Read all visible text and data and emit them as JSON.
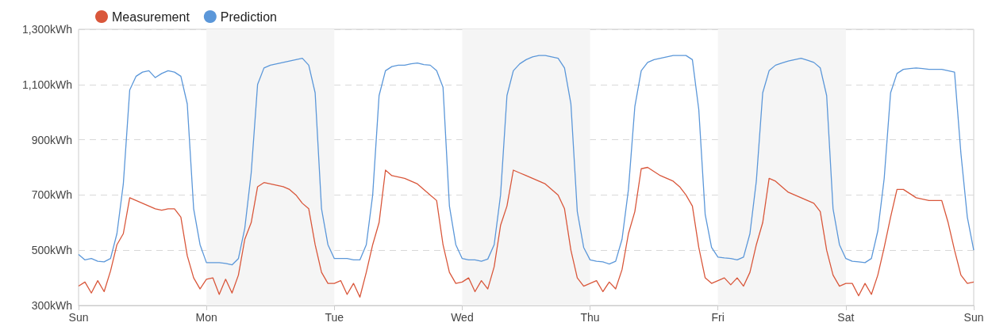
{
  "chart_data": {
    "type": "line",
    "categories": [
      "Sun",
      null,
      null,
      null,
      null,
      null,
      null,
      null,
      null,
      null,
      null,
      null,
      null,
      null,
      null,
      null,
      null,
      null,
      null,
      null,
      "Mon",
      null,
      null,
      null,
      null,
      null,
      null,
      null,
      null,
      null,
      null,
      null,
      null,
      null,
      null,
      null,
      null,
      null,
      null,
      null,
      "Tue",
      null,
      null,
      null,
      null,
      null,
      null,
      null,
      null,
      null,
      null,
      null,
      null,
      null,
      null,
      null,
      null,
      null,
      null,
      null,
      "Wed",
      null,
      null,
      null,
      null,
      null,
      null,
      null,
      null,
      null,
      null,
      null,
      null,
      null,
      null,
      null,
      null,
      null,
      null,
      null,
      "Thu",
      null,
      null,
      null,
      null,
      null,
      null,
      null,
      null,
      null,
      null,
      null,
      null,
      null,
      null,
      null,
      null,
      null,
      null,
      null,
      "Fri",
      null,
      null,
      null,
      null,
      null,
      null,
      null,
      null,
      null,
      null,
      null,
      null,
      null,
      null,
      null,
      null,
      null,
      null,
      null,
      "Sat",
      null,
      null,
      null,
      null,
      null,
      null,
      null,
      null,
      null,
      null,
      null,
      null,
      null,
      null,
      null,
      null,
      null,
      null,
      null,
      "Sun"
    ],
    "series": [
      {
        "name": "Measurement",
        "color": "#d9573b",
        "values": [
          370,
          385,
          345,
          390,
          350,
          425,
          520,
          560,
          690,
          680,
          670,
          660,
          650,
          645,
          650,
          650,
          620,
          480,
          400,
          360,
          395,
          400,
          340,
          395,
          345,
          410,
          540,
          600,
          730,
          745,
          740,
          735,
          730,
          720,
          700,
          670,
          650,
          520,
          420,
          380,
          380,
          390,
          340,
          380,
          330,
          420,
          520,
          600,
          790,
          770,
          765,
          760,
          750,
          740,
          720,
          700,
          680,
          520,
          420,
          380,
          385,
          400,
          350,
          390,
          360,
          440,
          590,
          660,
          790,
          780,
          770,
          760,
          750,
          740,
          720,
          700,
          650,
          500,
          400,
          370,
          380,
          390,
          350,
          385,
          360,
          430,
          560,
          640,
          795,
          800,
          785,
          770,
          760,
          750,
          730,
          700,
          660,
          510,
          400,
          380,
          390,
          400,
          375,
          400,
          370,
          420,
          520,
          600,
          760,
          750,
          730,
          710,
          700,
          690,
          680,
          670,
          640,
          500,
          410,
          370,
          380,
          380,
          335,
          380,
          340,
          410,
          510,
          620,
          720,
          720,
          705,
          690,
          685,
          680,
          680,
          680,
          600,
          500,
          410,
          380,
          385
        ]
      },
      {
        "name": "Prediction",
        "color": "#5b97d9",
        "values": [
          485,
          465,
          470,
          460,
          458,
          470,
          560,
          740,
          1080,
          1130,
          1145,
          1150,
          1125,
          1140,
          1150,
          1145,
          1130,
          1030,
          650,
          520,
          455,
          455,
          455,
          452,
          447,
          470,
          580,
          780,
          1100,
          1160,
          1170,
          1175,
          1180,
          1185,
          1190,
          1195,
          1170,
          1070,
          650,
          520,
          470,
          470,
          470,
          465,
          465,
          520,
          700,
          1060,
          1150,
          1165,
          1170,
          1170,
          1175,
          1178,
          1172,
          1170,
          1150,
          1090,
          660,
          520,
          470,
          465,
          465,
          460,
          468,
          520,
          700,
          1060,
          1150,
          1175,
          1190,
          1200,
          1205,
          1205,
          1200,
          1195,
          1160,
          1030,
          640,
          510,
          465,
          460,
          458,
          450,
          460,
          540,
          720,
          1020,
          1150,
          1180,
          1190,
          1195,
          1200,
          1205,
          1205,
          1205,
          1190,
          1010,
          630,
          510,
          475,
          472,
          470,
          465,
          475,
          560,
          750,
          1070,
          1150,
          1170,
          1178,
          1185,
          1190,
          1195,
          1188,
          1180,
          1160,
          1060,
          650,
          520,
          470,
          460,
          458,
          455,
          470,
          570,
          760,
          1070,
          1140,
          1155,
          1158,
          1160,
          1158,
          1155,
          1155,
          1155,
          1150,
          1145,
          850,
          620,
          500
        ]
      }
    ],
    "ylim": [
      300,
      1300
    ],
    "yticks": [
      {
        "value": 300,
        "label": "300kWh"
      },
      {
        "value": 500,
        "label": "500kWh"
      },
      {
        "value": 700,
        "label": "700kWh"
      },
      {
        "value": 900,
        "label": "900kWh"
      },
      {
        "value": 1100,
        "label": "1,100kWh"
      },
      {
        "value": 1300,
        "label": "1,300kWh"
      }
    ],
    "bands": [
      {
        "axis": "x",
        "from": "Mon",
        "to": "Tue",
        "color": "#f5f5f5"
      },
      {
        "axis": "x",
        "from": "Wed",
        "to": "Thu",
        "color": "#f5f5f5"
      },
      {
        "axis": "x",
        "from": "Fri",
        "to": "Sat",
        "color": "#f5f5f5"
      }
    ],
    "grid": "y",
    "legend": "top left",
    "marker": "none",
    "line_style": "solid"
  }
}
